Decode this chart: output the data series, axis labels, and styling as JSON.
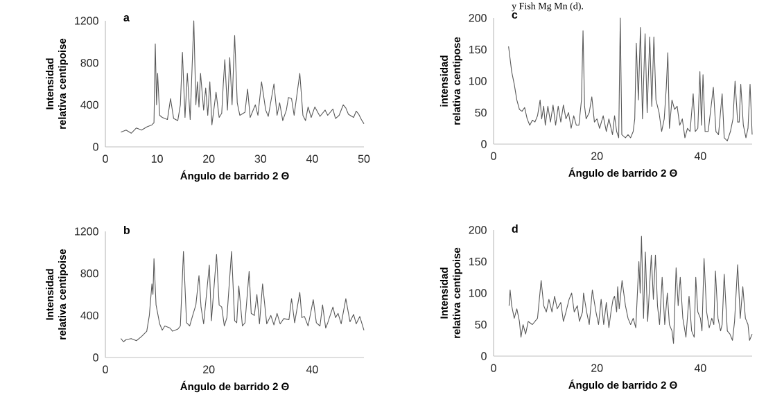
{
  "chart_data": [
    {
      "type": "line",
      "title": "a",
      "xlabel": "Ángulo de barrido 2 Θ",
      "ylabel": "Intensidad relativa centipoise",
      "color": "#595959",
      "xlim": [
        0,
        50
      ],
      "ylim": [
        0,
        1200
      ],
      "xticks": [
        0,
        10,
        20,
        30,
        40,
        50
      ],
      "yticks": [
        0,
        400,
        800,
        1200
      ],
      "annotations": [
        "y Fish Mg Mn (d)."
      ],
      "x": [
        3,
        4,
        5,
        6,
        7,
        8,
        9,
        9.4,
        9.65,
        9.9,
        10.1,
        10.5,
        11,
        12,
        12.6,
        13.2,
        14,
        14.5,
        14.9,
        15.4,
        15.85,
        16.4,
        17.1,
        17.5,
        17.8,
        18.1,
        18.4,
        19,
        19.4,
        19.8,
        20.2,
        20.6,
        21.4,
        22,
        22.5,
        22.8,
        23.1,
        23.6,
        24.05,
        24.5,
        25,
        25.5,
        26,
        27,
        27.5,
        28,
        29,
        29.5,
        30.2,
        31,
        31.5,
        32.6,
        33.2,
        33.7,
        34.3,
        35,
        35.4,
        36,
        36.5,
        37.6,
        38.2,
        38.7,
        39.2,
        39.8,
        40.5,
        41.5,
        42.5,
        43,
        44,
        44.5,
        45.2,
        46,
        46.5,
        47,
        48,
        48.5,
        49,
        49.5,
        50
      ],
      "values": [
        140,
        160,
        130,
        180,
        160,
        190,
        210,
        230,
        980,
        400,
        700,
        300,
        280,
        260,
        460,
        270,
        250,
        400,
        900,
        280,
        700,
        260,
        1200,
        400,
        620,
        380,
        700,
        350,
        560,
        300,
        620,
        210,
        520,
        280,
        320,
        600,
        830,
        350,
        850,
        400,
        1060,
        420,
        300,
        330,
        550,
        280,
        400,
        300,
        620,
        350,
        290,
        600,
        300,
        420,
        250,
        350,
        470,
        460,
        300,
        700,
        300,
        250,
        380,
        280,
        380,
        290,
        350,
        300,
        360,
        270,
        300,
        400,
        370,
        310,
        280,
        340,
        310,
        260,
        220
      ]
    },
    {
      "type": "line",
      "title": "c",
      "xlabel": "Ángulo de barrido 2 Θ",
      "ylabel": "intensidad relativa centipose",
      "color": "#595959",
      "xlim": [
        0,
        50
      ],
      "ylim": [
        0,
        200
      ],
      "xticks": [
        0,
        20,
        40
      ],
      "yticks": [
        0,
        50,
        100,
        150,
        200
      ],
      "x": [
        2.9,
        3.5,
        4,
        4.5,
        5,
        5.5,
        6,
        6.5,
        7,
        7.5,
        8,
        8.5,
        9,
        9.3,
        9.7,
        10,
        10.5,
        11,
        11.5,
        12,
        12.5,
        13,
        13.5,
        14,
        14.5,
        15,
        15.5,
        16,
        16.5,
        17,
        17.3,
        17.6,
        17.9,
        18.5,
        19,
        19.5,
        20,
        20.5,
        21.2,
        21.8,
        22.3,
        23,
        23.4,
        23.8,
        24.2,
        24.5,
        24.8,
        25.5,
        26,
        26.5,
        27,
        27.3,
        27.6,
        28,
        28.4,
        28.8,
        29.3,
        29.7,
        30.2,
        30.6,
        31,
        31.4,
        32,
        32.5,
        33,
        33.4,
        33.7,
        34,
        34.5,
        35,
        35.5,
        36,
        36.5,
        37,
        37.5,
        38,
        38.6,
        39,
        39.5,
        39.9,
        40.2,
        40.5,
        40.9,
        41.5,
        42.5,
        43,
        43.5,
        44.2,
        44.6,
        45.2,
        45.8,
        46.3,
        46.7,
        47.2,
        47.5,
        47.8,
        48.3,
        48.8,
        49.2,
        49.6,
        50
      ],
      "values": [
        155,
        115,
        95,
        70,
        55,
        52,
        58,
        40,
        30,
        38,
        35,
        45,
        70,
        40,
        60,
        30,
        60,
        35,
        62,
        30,
        60,
        35,
        62,
        40,
        50,
        25,
        45,
        30,
        30,
        70,
        180,
        60,
        40,
        50,
        75,
        35,
        40,
        25,
        45,
        20,
        40,
        15,
        45,
        20,
        10,
        200,
        15,
        10,
        15,
        10,
        20,
        40,
        160,
        70,
        185,
        40,
        175,
        50,
        170,
        60,
        170,
        70,
        50,
        20,
        40,
        90,
        145,
        25,
        70,
        55,
        60,
        30,
        40,
        10,
        25,
        20,
        80,
        20,
        25,
        115,
        30,
        110,
        20,
        20,
        90,
        20,
        15,
        80,
        10,
        5,
        20,
        40,
        100,
        35,
        35,
        95,
        30,
        10,
        25,
        95,
        15
      ]
    },
    {
      "type": "line",
      "title": "b",
      "xlabel": "Ángulo de barrido 2 Θ",
      "ylabel": "Intensidad relativa centipoise",
      "color": "#595959",
      "xlim": [
        0,
        50
      ],
      "ylim": [
        0,
        1200
      ],
      "xticks": [
        0,
        20,
        40
      ],
      "yticks": [
        0,
        400,
        800,
        1200
      ],
      "x": [
        3,
        3.5,
        4,
        5,
        6,
        7,
        8,
        8.5,
        9,
        9.2,
        9.4,
        9.8,
        10.5,
        11,
        11.5,
        12.5,
        13,
        14,
        14.5,
        15.1,
        15.7,
        16.3,
        17,
        17.5,
        18.1,
        18.5,
        19,
        20.1,
        20.5,
        21.5,
        22,
        22.5,
        23,
        23.5,
        24.4,
        25,
        25.4,
        25.8,
        26.5,
        27,
        27.8,
        28.2,
        28.8,
        29.3,
        29.8,
        30.4,
        31.2,
        32,
        32.6,
        33.2,
        33.8,
        34.5,
        35.5,
        36,
        36.6,
        37.6,
        38,
        38.5,
        39.2,
        40.2,
        40.8,
        41.5,
        42,
        42.6,
        43,
        44,
        44.5,
        45,
        45.6,
        46.5,
        47.3,
        48,
        48.5,
        49.2,
        50
      ],
      "values": [
        180,
        150,
        170,
        180,
        160,
        200,
        250,
        400,
        700,
        600,
        940,
        500,
        320,
        260,
        300,
        280,
        250,
        270,
        300,
        1010,
        330,
        300,
        420,
        500,
        780,
        480,
        320,
        880,
        350,
        980,
        500,
        480,
        300,
        380,
        1010,
        350,
        330,
        680,
        300,
        330,
        820,
        420,
        400,
        600,
        320,
        700,
        320,
        400,
        310,
        420,
        320,
        370,
        360,
        560,
        330,
        620,
        380,
        390,
        300,
        550,
        330,
        300,
        500,
        280,
        330,
        480,
        380,
        420,
        320,
        560,
        340,
        410,
        320,
        390,
        260
      ]
    },
    {
      "type": "line",
      "title": "d",
      "xlabel": "Ángulo de barrido 2 Θ",
      "ylabel": "Intensidad relativa centipoise",
      "color": "#595959",
      "xlim": [
        0,
        50
      ],
      "ylim": [
        0,
        200
      ],
      "xticks": [
        0,
        20,
        40
      ],
      "yticks": [
        0,
        50,
        100,
        150,
        200
      ],
      "x": [
        3,
        3.2,
        3.5,
        4,
        4.5,
        5,
        5.3,
        5.7,
        6.2,
        6.7,
        7.5,
        8.5,
        9.2,
        9.7,
        10.2,
        10.7,
        11.3,
        11.8,
        12.3,
        13,
        13.5,
        14,
        14.6,
        15.1,
        15.6,
        16.2,
        16.6,
        17.2,
        17.4,
        18,
        18.5,
        19.1,
        19.8,
        20.3,
        20.8,
        21.3,
        21.8,
        22.3,
        22.7,
        23.1,
        23.4,
        23.8,
        24,
        24.3,
        24.85,
        25.5,
        26,
        26.5,
        27,
        27.5,
        28.1,
        28.35,
        28.6,
        29,
        29.35,
        29.8,
        30.5,
        30.9,
        31.3,
        31.7,
        32.1,
        32.6,
        33.1,
        33.6,
        34,
        34.5,
        34.8,
        35.3,
        35.7,
        36.1,
        36.6,
        37.2,
        37.8,
        38.3,
        38.8,
        39.1,
        39.5,
        40,
        40.3,
        40.7,
        41.2,
        41.7,
        42.2,
        42.6,
        42.9,
        43.4,
        43.9,
        44.2,
        44.6,
        45.2,
        45.7,
        46.2,
        46.6,
        47.2,
        47.7,
        48.2,
        48.7,
        49.2,
        49.5,
        50
      ],
      "values": [
        80,
        105,
        80,
        60,
        75,
        55,
        30,
        50,
        35,
        55,
        50,
        60,
        120,
        80,
        70,
        90,
        70,
        95,
        75,
        85,
        55,
        70,
        90,
        100,
        70,
        80,
        55,
        70,
        100,
        70,
        50,
        105,
        70,
        50,
        90,
        50,
        85,
        45,
        70,
        90,
        95,
        70,
        110,
        75,
        120,
        80,
        60,
        50,
        60,
        45,
        150,
        100,
        190,
        60,
        165,
        55,
        160,
        90,
        160,
        80,
        50,
        125,
        50,
        100,
        50,
        40,
        20,
        140,
        80,
        125,
        60,
        30,
        95,
        40,
        30,
        125,
        70,
        60,
        40,
        155,
        70,
        45,
        60,
        50,
        135,
        60,
        40,
        50,
        130,
        40,
        35,
        25,
        55,
        145,
        60,
        110,
        60,
        50,
        25,
        35
      ]
    }
  ]
}
